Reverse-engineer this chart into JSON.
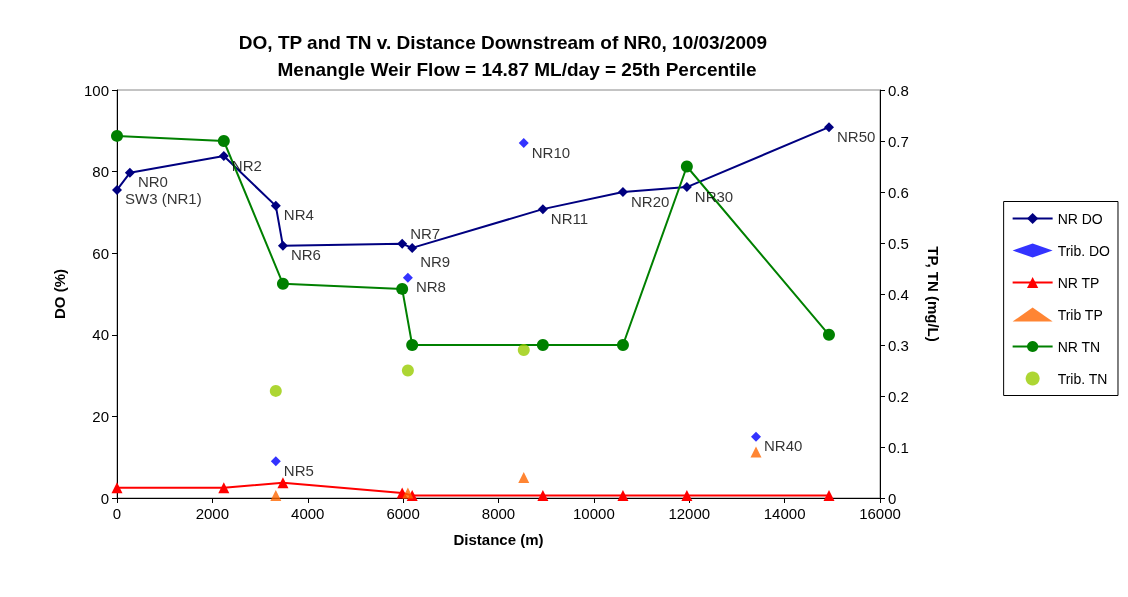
{
  "chart_data": {
    "type": "line",
    "title": "DO, TP and TN v. Distance Downstream of NR0, 10/03/2009",
    "subtitle": "Menangle Weir Flow = 14.87 ML/day = 25th Percentile",
    "xlabel": "Distance (m)",
    "ylabel": "DO (%)",
    "y2label": "TP, TN (mg/L)",
    "xlim": [
      0,
      16000
    ],
    "xticks": [
      0,
      2000,
      4000,
      6000,
      8000,
      10000,
      12000,
      14000,
      16000
    ],
    "ylim": [
      0,
      100
    ],
    "yticks": [
      0,
      20,
      40,
      60,
      80,
      100
    ],
    "y2lim": [
      0,
      0.8
    ],
    "y2ticks": [
      0,
      0.1,
      0.2,
      0.3,
      0.4,
      0.5,
      0.6,
      0.7,
      0.8
    ],
    "legend": "right",
    "series": [
      {
        "name": "NR DO",
        "marker": "diamond",
        "color": "#000080",
        "x": [
          0,
          270,
          2240,
          3330,
          3480,
          5980,
          6190,
          8930,
          10610,
          11950,
          14930
        ],
        "values": [
          75.5,
          79.7,
          83.8,
          71.6,
          61.8,
          62.3,
          61.3,
          70.8,
          75,
          76.2,
          90.9
        ]
      },
      {
        "name": "Trib. DO",
        "type": "scatter",
        "marker": "diamond",
        "color": "#0000ff",
        "x": [
          3330,
          6100,
          8530,
          13400
        ],
        "values": [
          9,
          54,
          87,
          15
        ]
      },
      {
        "name": "NR TP",
        "marker": "triangle",
        "color": "#ff0000",
        "axis": "y2",
        "x": [
          0,
          2240,
          3480,
          5980,
          6190,
          8930,
          10610,
          11950,
          14930
        ],
        "values": [
          0.02,
          0.02,
          0.03,
          0.01,
          0.005,
          0.005,
          0.005,
          0.005,
          0.005
        ]
      },
      {
        "name": "Trib TP",
        "type": "scatter",
        "marker": "triangle",
        "color": "#ff6600",
        "axis": "y2",
        "x": [
          3330,
          6100,
          8530,
          13400
        ],
        "values": [
          0.005,
          0.01,
          0.04,
          0.09
        ]
      },
      {
        "name": "NR TN",
        "marker": "circle",
        "color": "#008000",
        "axis": "y2",
        "x": [
          0,
          2240,
          3330,
          3480,
          5980,
          6190,
          8930,
          10610,
          11950,
          14930
        ],
        "values": [
          0.71,
          0.7,
          null,
          0.42,
          0.41,
          0.3,
          0.3,
          0.3,
          0.65,
          0.32
        ]
      },
      {
        "name": "Trib. TN",
        "type": "scatter",
        "marker": "circle",
        "color": "#99cc00",
        "axis": "y2",
        "x": [
          3330,
          6100,
          8530
        ],
        "values": [
          0.21,
          0.25,
          0.29
        ]
      }
    ],
    "annotations": [
      {
        "text": "SW3 (NR1)",
        "x": 0,
        "y": 75.5
      },
      {
        "text": "NR0",
        "x": 270,
        "y": 79.7
      },
      {
        "text": "NR2",
        "x": 2240,
        "y": 83.8
      },
      {
        "text": "NR4",
        "x": 3330,
        "y": 71.6
      },
      {
        "text": "NR6",
        "x": 3480,
        "y": 61.8
      },
      {
        "text": "NR7",
        "x": 5980,
        "y": 62.3
      },
      {
        "text": "NR9",
        "x": 6190,
        "y": 61.3
      },
      {
        "text": "NR8",
        "x": 6100,
        "y": 54
      },
      {
        "text": "NR5",
        "x": 3330,
        "y": 9
      },
      {
        "text": "NR10",
        "x": 8530,
        "y": 87
      },
      {
        "text": "NR11",
        "x": 8930,
        "y": 70.8
      },
      {
        "text": "NR20",
        "x": 10610,
        "y": 75
      },
      {
        "text": "NR30",
        "x": 11950,
        "y": 76.2
      },
      {
        "text": "NR40",
        "x": 13400,
        "y": 15
      },
      {
        "text": "NR50",
        "x": 14930,
        "y": 90.9
      }
    ]
  }
}
